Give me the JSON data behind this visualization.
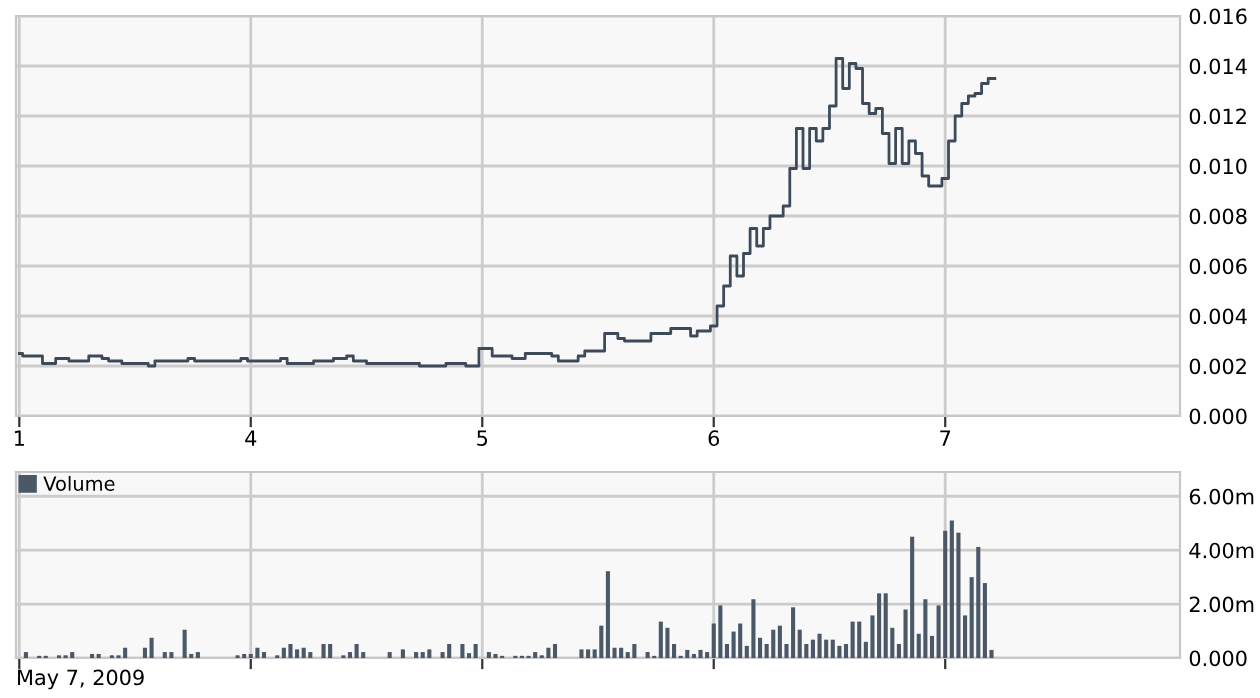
{
  "chart_data": [
    {
      "type": "step",
      "categories": [
        "1",
        null,
        null,
        null,
        null,
        null,
        null,
        null,
        null,
        null,
        null,
        null,
        null,
        null,
        null,
        null,
        null,
        null,
        null,
        null,
        null,
        null,
        null,
        null,
        null,
        null,
        null,
        null,
        null,
        null,
        null,
        null,
        null,
        null,
        null,
        "4",
        null,
        null,
        null,
        null,
        null,
        null,
        null,
        null,
        null,
        null,
        null,
        null,
        null,
        null,
        null,
        null,
        null,
        null,
        null,
        null,
        null,
        null,
        null,
        null,
        null,
        null,
        null,
        null,
        null,
        null,
        null,
        null,
        null,
        null,
        "5",
        null,
        null,
        null,
        null,
        null,
        null,
        null,
        null,
        null,
        null,
        null,
        null,
        null,
        null,
        null,
        null,
        null,
        null,
        null,
        null,
        null,
        null,
        null,
        null,
        null,
        null,
        null,
        null,
        null,
        null,
        null,
        null,
        null,
        null,
        "6",
        null,
        null,
        null,
        null,
        null,
        null,
        null,
        null,
        null,
        null,
        null,
        null,
        null,
        null,
        null,
        null,
        null,
        null,
        null,
        null,
        null,
        null,
        null,
        null,
        null,
        null,
        null,
        null,
        null,
        null,
        null,
        null,
        null,
        null,
        "7",
        null,
        null,
        null,
        null,
        null,
        null,
        null,
        null,
        null,
        null,
        null,
        null,
        null,
        null,
        null,
        null,
        null,
        null,
        null,
        null,
        null,
        null,
        null,
        null,
        null,
        null,
        null,
        null,
        null,
        null,
        null,
        null,
        null,
        null,
        null
      ],
      "ylim": [
        0,
        0.016
      ],
      "yticks": [
        {
          "value": 0,
          "label": "0.000"
        },
        {
          "value": 0.002,
          "label": "0.002"
        },
        {
          "value": 0.004,
          "label": "0.004"
        },
        {
          "value": 0.006,
          "label": "0.006"
        },
        {
          "value": 0.008,
          "label": "0.008"
        },
        {
          "value": 0.01,
          "label": "0.010"
        },
        {
          "value": 0.012,
          "label": "0.012"
        },
        {
          "value": 0.014,
          "label": "0.014"
        },
        {
          "value": 0.016,
          "label": "0.016"
        }
      ],
      "grid": true,
      "series": [
        {
          "color": "#3d4a5a",
          "values": [
            0.0025,
            0.0024,
            0.0024,
            0.0024,
            0.0021,
            0.0021,
            0.0023,
            0.0023,
            0.0022,
            0.0022,
            0.0022,
            0.0024,
            0.0024,
            0.0023,
            0.0022,
            0.0022,
            0.0021,
            0.0021,
            0.0021,
            0.0021,
            0.002,
            0.0022,
            0.0022,
            0.0022,
            0.0022,
            0.0022,
            0.0023,
            0.0022,
            0.0022,
            0.0022,
            0.0022,
            0.0022,
            0.0022,
            0.0022,
            0.0023,
            0.0022,
            0.0022,
            0.0022,
            0.0022,
            0.0022,
            0.0023,
            0.0021,
            0.0021,
            0.0021,
            0.0021,
            0.0022,
            0.0022,
            0.0022,
            0.0023,
            0.0023,
            0.0024,
            0.0022,
            0.0022,
            0.0021,
            0.0021,
            0.0021,
            0.0021,
            0.0021,
            0.0021,
            0.0021,
            0.0021,
            0.002,
            0.002,
            0.002,
            0.002,
            0.0021,
            0.0021,
            0.0021,
            0.002,
            0.002,
            0.0027,
            0.0027,
            0.0024,
            0.0024,
            0.0024,
            0.0023,
            0.0023,
            0.0025,
            0.0025,
            0.0025,
            0.0025,
            0.0024,
            0.0022,
            0.0022,
            0.0022,
            0.0024,
            0.0026,
            0.0026,
            0.0026,
            0.0033,
            0.0033,
            0.0031,
            0.003,
            0.003,
            0.003,
            0.003,
            0.0033,
            0.0033,
            0.0033,
            0.0035,
            0.0035,
            0.0035,
            0.0032,
            0.0034,
            0.0034,
            0.0036,
            0.0044,
            0.0052,
            0.0064,
            0.0056,
            0.0065,
            0.0075,
            0.0068,
            0.0075,
            0.008,
            0.008,
            0.0084,
            0.0099,
            0.0115,
            0.0099,
            0.0115,
            0.011,
            0.0115,
            0.0124,
            0.0143,
            0.0131,
            0.0141,
            0.0139,
            0.0125,
            0.0121,
            0.0123,
            0.0113,
            0.0101,
            0.0115,
            0.0101,
            0.011,
            0.0105,
            0.0096,
            0.0092,
            0.0092,
            0.0095,
            0.011,
            0.012,
            0.0125,
            0.0128,
            0.0129,
            0.0133,
            0.0135,
            null,
            null,
            null,
            null,
            null,
            null,
            null,
            null,
            null,
            null,
            null,
            null,
            null,
            null,
            null,
            null,
            null,
            null,
            null,
            null,
            null,
            null,
            null,
            null,
            null,
            null,
            null,
            null
          ]
        }
      ]
    },
    {
      "type": "bar",
      "tick_labels": "y",
      "categories": [
        "1",
        null,
        null,
        null,
        null,
        null,
        null,
        null,
        null,
        null,
        null,
        null,
        null,
        null,
        null,
        null,
        null,
        null,
        null,
        null,
        null,
        null,
        null,
        null,
        null,
        null,
        null,
        null,
        null,
        null,
        null,
        null,
        null,
        null,
        null,
        "4",
        null,
        null,
        null,
        null,
        null,
        null,
        null,
        null,
        null,
        null,
        null,
        null,
        null,
        null,
        null,
        null,
        null,
        null,
        null,
        null,
        null,
        null,
        null,
        null,
        null,
        null,
        null,
        null,
        null,
        null,
        null,
        null,
        null,
        null,
        "5",
        null,
        null,
        null,
        null,
        null,
        null,
        null,
        null,
        null,
        null,
        null,
        null,
        null,
        null,
        null,
        null,
        null,
        null,
        null,
        null,
        null,
        null,
        null,
        null,
        null,
        null,
        null,
        null,
        null,
        null,
        null,
        null,
        null,
        null,
        "6",
        null,
        null,
        null,
        null,
        null,
        null,
        null,
        null,
        null,
        null,
        null,
        null,
        null,
        null,
        null,
        null,
        null,
        null,
        null,
        null,
        null,
        null,
        null,
        null,
        null,
        null,
        null,
        null,
        null,
        null,
        null,
        null,
        null,
        null,
        "7",
        null,
        null,
        null,
        null,
        null,
        null,
        null,
        null,
        null,
        null,
        null,
        null,
        null,
        null,
        null,
        null,
        null,
        null,
        null,
        null,
        null,
        null,
        null,
        null,
        null,
        null,
        null,
        null,
        null,
        null,
        null,
        null,
        null,
        null,
        null
      ],
      "ylim": [
        0,
        6.9
      ],
      "yticks": [
        {
          "value": 0,
          "label": "0.000"
        },
        {
          "value": 2,
          "label": "2.00m"
        },
        {
          "value": 4,
          "label": "4.00m"
        },
        {
          "value": 6,
          "label": "6.00m"
        }
      ],
      "grid": true,
      "legend": "top left",
      "annotations": [
        "May 7, 2009"
      ],
      "series": [
        {
          "name": "Volume",
          "color": "#4a5868",
          "values": [
            null,
            0.22,
            null,
            0.08,
            0.08,
            null,
            0.1,
            0.1,
            0.22,
            null,
            null,
            0.15,
            0.15,
            null,
            0.1,
            0.1,
            0.38,
            null,
            null,
            0.38,
            0.75,
            null,
            0.22,
            0.22,
            null,
            1.05,
            0.15,
            0.22,
            null,
            null,
            null,
            null,
            null,
            0.1,
            0.15,
            0.15,
            0.38,
            0.22,
            null,
            0.1,
            0.38,
            0.52,
            0.32,
            0.38,
            0.22,
            null,
            0.52,
            0.52,
            null,
            0.1,
            0.22,
            0.52,
            0.22,
            null,
            null,
            null,
            0.22,
            null,
            0.32,
            null,
            0.22,
            0.22,
            0.32,
            null,
            0.22,
            0.52,
            null,
            0.52,
            0.18,
            0.52,
            null,
            0.22,
            0.15,
            0.08,
            null,
            0.08,
            0.08,
            0.08,
            0.22,
            0.1,
            0.38,
            0.52,
            null,
            null,
            null,
            0.32,
            0.32,
            0.32,
            1.2,
            3.22,
            0.38,
            0.38,
            0.22,
            0.52,
            null,
            0.22,
            0.08,
            1.35,
            1.12,
            0.52,
            0.08,
            0.3,
            0.15,
            0.3,
            0.22,
            1.28,
            1.95,
            0.52,
            0.98,
            1.28,
            0.45,
            2.18,
            0.75,
            0.52,
            1.05,
            1.2,
            0.52,
            1.88,
            1.05,
            0.52,
            0.68,
            0.9,
            0.68,
            0.68,
            0.45,
            0.52,
            1.35,
            1.35,
            0.6,
            1.58,
            2.4,
            2.4,
            1.12,
            0.52,
            1.8,
            4.5,
            0.9,
            2.18,
            0.82,
            1.95,
            4.72,
            5.1,
            4.65,
            1.58,
            3.0,
            4.12,
            2.78,
            0.3,
            null,
            null,
            null,
            null,
            null,
            null,
            null,
            null,
            null,
            null,
            null,
            null,
            null,
            null,
            null,
            null,
            null,
            null,
            null,
            null,
            null,
            null,
            null,
            null,
            null,
            null,
            null,
            null
          ]
        }
      ]
    }
  ]
}
